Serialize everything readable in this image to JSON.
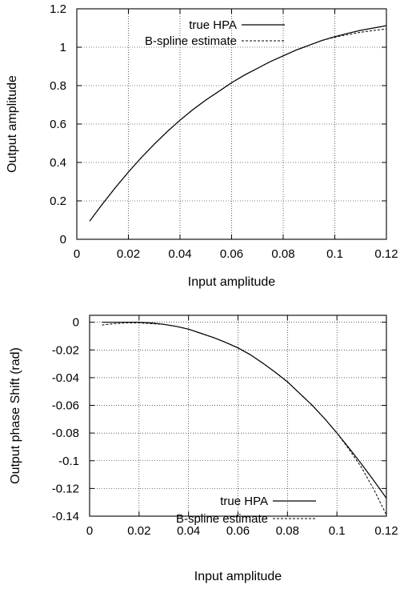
{
  "chart_data": [
    {
      "type": "line",
      "xlabel": "Input amplitude",
      "ylabel": "Output amplitude",
      "xlim": [
        0,
        0.12
      ],
      "ylim": [
        0,
        1.2
      ],
      "xticks": [
        0,
        0.02,
        0.04,
        0.06,
        0.08,
        0.1,
        0.12
      ],
      "yticks": [
        0,
        0.2,
        0.4,
        0.6,
        0.8,
        1,
        1.2
      ],
      "xtick_labels": [
        "0",
        "0.02",
        "0.04",
        "0.06",
        "0.08",
        "0.1",
        "0.12"
      ],
      "ytick_labels": [
        "0",
        "0.2",
        "0.4",
        "0.6",
        "0.8",
        "1",
        "1.2"
      ],
      "grid": true,
      "legend_position": "top-right",
      "series": [
        {
          "name": "true HPA",
          "style": "solid",
          "x": [
            0.005,
            0.01,
            0.015,
            0.02,
            0.025,
            0.03,
            0.035,
            0.04,
            0.045,
            0.05,
            0.055,
            0.06,
            0.065,
            0.07,
            0.075,
            0.08,
            0.085,
            0.09,
            0.095,
            0.1,
            0.105,
            0.11,
            0.115,
            0.12
          ],
          "y": [
            0.095,
            0.185,
            0.27,
            0.35,
            0.425,
            0.495,
            0.56,
            0.62,
            0.675,
            0.725,
            0.77,
            0.815,
            0.855,
            0.89,
            0.925,
            0.955,
            0.985,
            1.01,
            1.035,
            1.055,
            1.072,
            1.088,
            1.1,
            1.112
          ]
        },
        {
          "name": "B-spline estimate",
          "style": "dashed",
          "x": [
            0.005,
            0.01,
            0.015,
            0.02,
            0.025,
            0.03,
            0.035,
            0.04,
            0.045,
            0.05,
            0.055,
            0.06,
            0.065,
            0.07,
            0.075,
            0.08,
            0.085,
            0.09,
            0.095,
            0.1,
            0.105,
            0.11,
            0.115,
            0.12
          ],
          "y": [
            0.095,
            0.185,
            0.27,
            0.35,
            0.425,
            0.495,
            0.56,
            0.62,
            0.675,
            0.725,
            0.77,
            0.815,
            0.855,
            0.89,
            0.925,
            0.955,
            0.985,
            1.01,
            1.035,
            1.052,
            1.066,
            1.078,
            1.087,
            1.095
          ]
        }
      ]
    },
    {
      "type": "line",
      "xlabel": "Input amplitude",
      "ylabel": "Output phase Shift (rad)",
      "xlim": [
        0,
        0.12
      ],
      "ylim": [
        -0.14,
        0.005
      ],
      "xticks": [
        0,
        0.02,
        0.04,
        0.06,
        0.08,
        0.1,
        0.12
      ],
      "yticks": [
        0,
        -0.02,
        -0.04,
        -0.06,
        -0.08,
        -0.1,
        -0.12,
        -0.14
      ],
      "xtick_labels": [
        "0",
        "0.02",
        "0.04",
        "0.06",
        "0.08",
        "0.1",
        "0.12"
      ],
      "ytick_labels": [
        "0",
        "-0.02",
        "-0.04",
        "-0.06",
        "-0.08",
        "-0.1",
        "-0.12",
        "-0.14"
      ],
      "grid": true,
      "legend_position": "bottom-right",
      "series": [
        {
          "name": "true HPA",
          "style": "solid",
          "x": [
            0.005,
            0.01,
            0.015,
            0.02,
            0.025,
            0.03,
            0.035,
            0.04,
            0.045,
            0.05,
            0.055,
            0.06,
            0.065,
            0.07,
            0.075,
            0.08,
            0.085,
            0.09,
            0.095,
            0.1,
            0.105,
            0.11,
            0.115,
            0.12
          ],
          "y": [
            0,
            0,
            0,
            0,
            -0.0005,
            -0.0015,
            -0.003,
            -0.005,
            -0.008,
            -0.011,
            -0.0145,
            -0.0185,
            -0.0235,
            -0.0295,
            -0.036,
            -0.043,
            -0.0515,
            -0.06,
            -0.0695,
            -0.08,
            -0.091,
            -0.1025,
            -0.1145,
            -0.127
          ]
        },
        {
          "name": "B-spline estimate",
          "style": "dashed",
          "x": [
            0.005,
            0.01,
            0.015,
            0.02,
            0.025,
            0.03,
            0.035,
            0.04,
            0.045,
            0.05,
            0.055,
            0.06,
            0.065,
            0.07,
            0.075,
            0.08,
            0.085,
            0.09,
            0.095,
            0.1,
            0.105,
            0.11,
            0.115,
            0.12
          ],
          "y": [
            -0.002,
            -0.001,
            -0.0005,
            -0.0005,
            -0.001,
            -0.0015,
            -0.003,
            -0.005,
            -0.008,
            -0.011,
            -0.0145,
            -0.0185,
            -0.0235,
            -0.0295,
            -0.036,
            -0.043,
            -0.0515,
            -0.06,
            -0.0695,
            -0.08,
            -0.092,
            -0.105,
            -0.121,
            -0.139
          ]
        }
      ]
    }
  ]
}
